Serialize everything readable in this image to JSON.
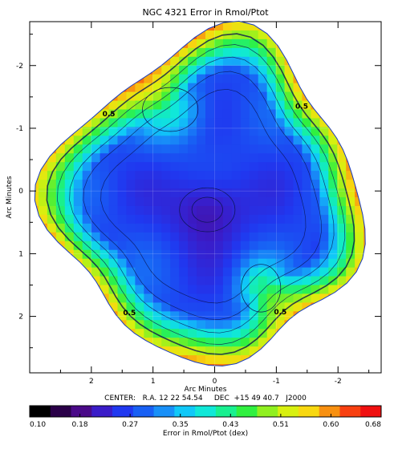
{
  "chart_data": {
    "type": "heatmap",
    "title": "NGC 4321 Error in Rmol/Ptot",
    "xlabel": "Arc Minutes",
    "ylabel": "Arc Minutes",
    "x_ticks": [
      "2",
      "1",
      "0",
      "-1",
      "-2"
    ],
    "y_ticks": [
      "-2",
      "-1",
      "0",
      "1",
      "2"
    ],
    "xlim": [
      3.0,
      -2.7
    ],
    "ylim": [
      -2.7,
      2.9
    ],
    "center_text": "CENTER:   R.A. 12 22 54.54     DEC  +15 49 40.7   J2000",
    "contour_labels": [
      "0.5",
      "0.5",
      "0.5",
      "0.5"
    ],
    "colorbar": {
      "label": "Error in Rmol/Ptot (dex)",
      "ticks": [
        "0.10",
        "0.18",
        "0.27",
        "0.35",
        "0.43",
        "0.51",
        "0.60",
        "0.68"
      ],
      "range": [
        0.1,
        0.68
      ],
      "colors": [
        "#000000",
        "#2a0048",
        "#4a0a88",
        "#3a1cc8",
        "#2038f0",
        "#1860f4",
        "#1890f8",
        "#10c8f8",
        "#10e8d8",
        "#18f090",
        "#30f040",
        "#90f020",
        "#d8f010",
        "#f8d810",
        "#f89010",
        "#f84010",
        "#f01010"
      ]
    },
    "features": {
      "center_min": {
        "x": 0.12,
        "y": 0.3,
        "value": 0.18
      },
      "ne_blob": {
        "x": 0.72,
        "y": -1.3,
        "value": 0.38
      },
      "se_blob": {
        "x": -0.75,
        "y": 1.55,
        "value": 0.4
      },
      "edge_value": 0.55,
      "interior_value": 0.26
    }
  }
}
